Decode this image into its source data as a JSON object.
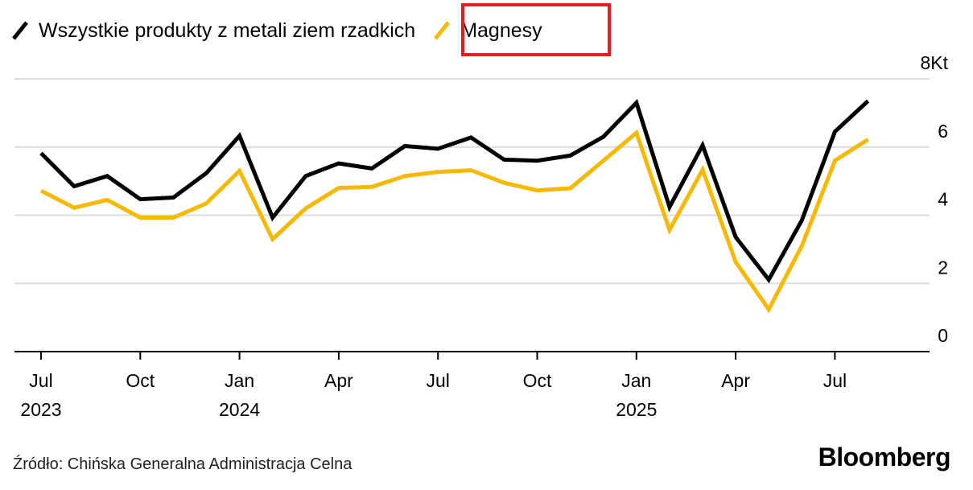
{
  "legend": [
    {
      "label": "Wszystkie produkty z metali ziem rzadkich",
      "color": "#000000"
    },
    {
      "label": "Magnesy",
      "color": "#f7b800"
    }
  ],
  "source": "Źródło: Chińska Generalna Administracja Celna",
  "brand": "Bloomberg",
  "chart_data": {
    "type": "line",
    "x": [
      "2023-07",
      "2023-08",
      "2023-09",
      "2023-10",
      "2023-11",
      "2023-12",
      "2024-01",
      "2024-02",
      "2024-03",
      "2024-04",
      "2024-05",
      "2024-06",
      "2024-07",
      "2024-08",
      "2024-09",
      "2024-10",
      "2024-11",
      "2024-12",
      "2025-01",
      "2025-02",
      "2025-03",
      "2025-04",
      "2025-05",
      "2025-06",
      "2025-07",
      "2025-08"
    ],
    "series": [
      {
        "name": "Wszystkie produkty z metali ziem rzadkich",
        "color": "#000000",
        "values": [
          5.82,
          4.85,
          5.15,
          4.47,
          4.52,
          5.24,
          6.33,
          3.93,
          5.15,
          5.52,
          5.37,
          6.03,
          5.95,
          6.28,
          5.63,
          5.6,
          5.75,
          6.3,
          7.3,
          4.24,
          6.05,
          3.36,
          2.11,
          3.85,
          6.45,
          7.35
        ]
      },
      {
        "name": "Magnesy",
        "color": "#f7b800",
        "values": [
          4.72,
          4.22,
          4.45,
          3.93,
          3.93,
          4.35,
          5.3,
          3.3,
          4.2,
          4.8,
          4.83,
          5.15,
          5.27,
          5.32,
          4.95,
          4.73,
          4.79,
          5.6,
          6.42,
          3.57,
          5.33,
          2.63,
          1.24,
          3.1,
          5.6,
          6.22
        ]
      }
    ],
    "y_ticks": [
      "8Kt",
      "6",
      "4",
      "2",
      "0"
    ],
    "ylim": [
      0,
      8
    ],
    "x_ticks": [
      {
        "x": "2023-07",
        "label": "Jul",
        "year": "2023"
      },
      {
        "x": "2023-10",
        "label": "Oct",
        "year": ""
      },
      {
        "x": "2024-01",
        "label": "Jan",
        "year": "2024"
      },
      {
        "x": "2024-04",
        "label": "Apr",
        "year": ""
      },
      {
        "x": "2024-07",
        "label": "Jul",
        "year": ""
      },
      {
        "x": "2024-10",
        "label": "Oct",
        "year": ""
      },
      {
        "x": "2025-01",
        "label": "Jan",
        "year": "2025"
      },
      {
        "x": "2025-04",
        "label": "Apr",
        "year": ""
      },
      {
        "x": "2025-07",
        "label": "Jul",
        "year": ""
      }
    ],
    "grid": true,
    "legend_position": "top-left",
    "highlighted_legend_entry": "Magnesy"
  }
}
